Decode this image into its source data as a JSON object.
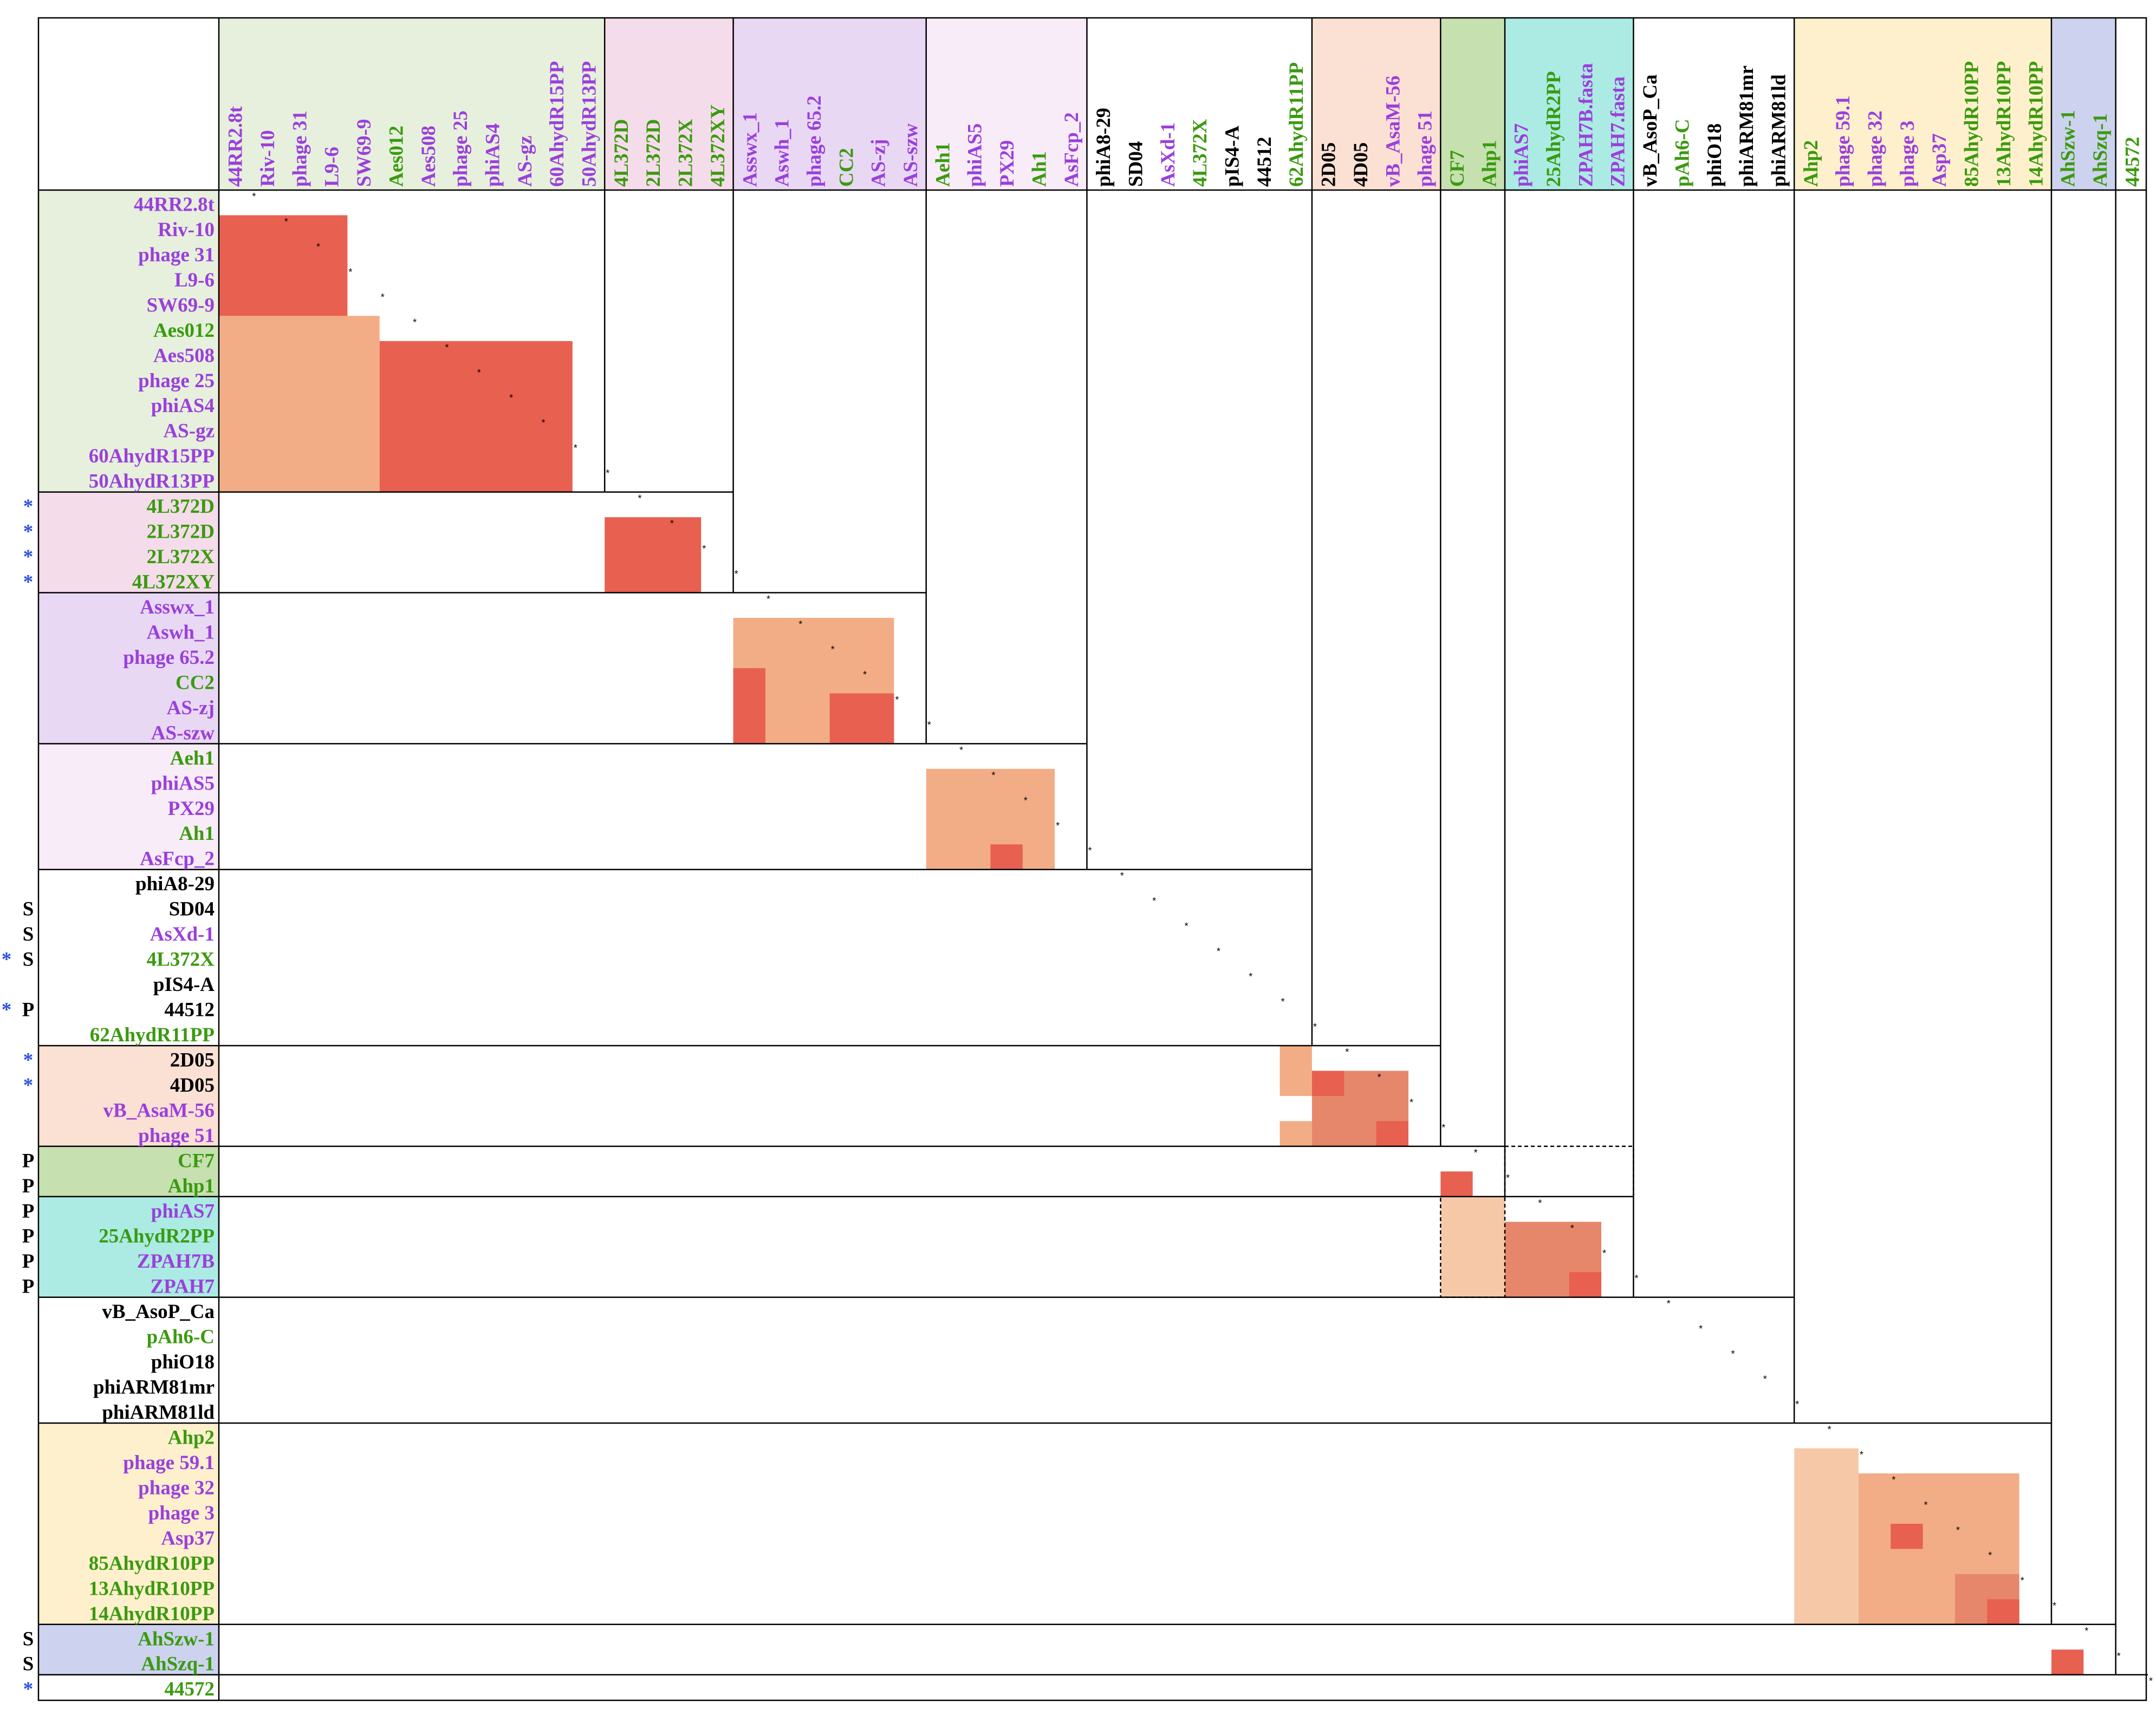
{
  "chart_data": {
    "type": "heatmap",
    "title": "",
    "diagonal_marker": "*",
    "colors": {
      "purple": "#9b3fdc",
      "green": "#3a9a0f",
      "black": "#000000",
      "blue_star": "#2d50e0",
      "very_high": "#e8604f",
      "high": "#e6876b",
      "medium": "#f2ad86",
      "low": "#f6c8a8",
      "grid": "#000000"
    },
    "labels": [
      {
        "name": "44RR2.8t",
        "color": "purple",
        "flag": ""
      },
      {
        "name": "Riv-10",
        "color": "purple",
        "flag": ""
      },
      {
        "name": "phage 31",
        "color": "purple",
        "flag": ""
      },
      {
        "name": "L9-6",
        "color": "purple",
        "flag": ""
      },
      {
        "name": "SW69-9",
        "color": "purple",
        "flag": ""
      },
      {
        "name": "Aes012",
        "color": "green",
        "flag": ""
      },
      {
        "name": "Aes508",
        "color": "purple",
        "flag": ""
      },
      {
        "name": "phage 25",
        "color": "purple",
        "flag": ""
      },
      {
        "name": "phiAS4",
        "color": "purple",
        "flag": ""
      },
      {
        "name": "AS-gz",
        "color": "purple",
        "flag": ""
      },
      {
        "name": "60AhydR15PP",
        "color": "purple",
        "flag": ""
      },
      {
        "name": "50AhydR13PP",
        "color": "purple",
        "flag": ""
      },
      {
        "name": "4L372D",
        "color": "green",
        "flag": "*"
      },
      {
        "name": "2L372D",
        "color": "green",
        "flag": "*"
      },
      {
        "name": "2L372X",
        "color": "green",
        "flag": "*"
      },
      {
        "name": "4L372XY",
        "color": "green",
        "flag": "*"
      },
      {
        "name": "Asswx_1",
        "color": "purple",
        "flag": ""
      },
      {
        "name": "Aswh_1",
        "color": "purple",
        "flag": ""
      },
      {
        "name": "phage 65.2",
        "color": "purple",
        "flag": ""
      },
      {
        "name": "CC2",
        "color": "green",
        "flag": ""
      },
      {
        "name": "AS-zj",
        "color": "purple",
        "flag": ""
      },
      {
        "name": "AS-szw",
        "color": "purple",
        "flag": ""
      },
      {
        "name": "Aeh1",
        "color": "green",
        "flag": ""
      },
      {
        "name": "phiAS5",
        "color": "purple",
        "flag": ""
      },
      {
        "name": "PX29",
        "color": "purple",
        "flag": ""
      },
      {
        "name": "Ah1",
        "color": "green",
        "flag": ""
      },
      {
        "name": "AsFcp_2",
        "color": "purple",
        "flag": ""
      },
      {
        "name": "phiA8-29",
        "color": "black",
        "flag": ""
      },
      {
        "name": "SD04",
        "color": "black",
        "flag": "S"
      },
      {
        "name": "AsXd-1",
        "color": "purple",
        "flag": "S"
      },
      {
        "name": "4L372X",
        "color": "green",
        "flag": "* S"
      },
      {
        "name": "pIS4-A",
        "color": "black",
        "flag": ""
      },
      {
        "name": "44512",
        "color": "black",
        "flag": "* P"
      },
      {
        "name": "62AhydR11PP",
        "color": "green",
        "flag": ""
      },
      {
        "name": "2D05",
        "color": "black",
        "flag": "*"
      },
      {
        "name": "4D05",
        "color": "black",
        "flag": "*"
      },
      {
        "name": "vB_AsaM-56",
        "color": "purple",
        "flag": ""
      },
      {
        "name": "phage 51",
        "color": "purple",
        "flag": ""
      },
      {
        "name": "CF7",
        "color": "green",
        "flag": "P"
      },
      {
        "name": "Ahp1",
        "color": "green",
        "flag": "P"
      },
      {
        "name": "phiAS7",
        "color": "purple",
        "flag": "P"
      },
      {
        "name": "25AhydR2PP",
        "color": "green",
        "flag": "P"
      },
      {
        "name": "ZPAH7B",
        "color": "purple",
        "flag": "P"
      },
      {
        "name": "ZPAH7",
        "color": "purple",
        "flag": "P"
      },
      {
        "name": "vB_AsoP_Ca",
        "color": "black",
        "flag": ""
      },
      {
        "name": "pAh6-C",
        "color": "green",
        "flag": ""
      },
      {
        "name": "phiO18",
        "color": "black",
        "flag": ""
      },
      {
        "name": "phiARM81mr",
        "color": "black",
        "flag": ""
      },
      {
        "name": "phiARM81ld",
        "color": "black",
        "flag": ""
      },
      {
        "name": "Ahp2",
        "color": "green",
        "flag": ""
      },
      {
        "name": "phage 59.1",
        "color": "purple",
        "flag": ""
      },
      {
        "name": "phage 32",
        "color": "purple",
        "flag": ""
      },
      {
        "name": "phage 3",
        "color": "purple",
        "flag": ""
      },
      {
        "name": "Asp37",
        "color": "purple",
        "flag": ""
      },
      {
        "name": "85AhydR10PP",
        "color": "green",
        "flag": ""
      },
      {
        "name": "13AhydR10PP",
        "color": "green",
        "flag": ""
      },
      {
        "name": "14AhydR10PP",
        "color": "green",
        "flag": ""
      },
      {
        "name": "AhSzw-1",
        "color": "green",
        "flag": "S"
      },
      {
        "name": "AhSzq-1",
        "color": "green",
        "flag": "S"
      },
      {
        "name": "44572",
        "color": "green",
        "flag": "*"
      }
    ],
    "column_label_overrides": {
      "42": "ZPAH7B.fasta",
      "43": "ZPAH7.fasta"
    },
    "groups": [
      {
        "start": 0,
        "end": 11,
        "color": "#e6f0dc"
      },
      {
        "start": 12,
        "end": 15,
        "color": "#f5dcea"
      },
      {
        "start": 16,
        "end": 21,
        "color": "#e8d8f3"
      },
      {
        "start": 22,
        "end": 26,
        "color": "#f7ecf7"
      },
      {
        "start": 27,
        "end": 33,
        "color": ""
      },
      {
        "start": 34,
        "end": 37,
        "color": "#fbe0d4"
      },
      {
        "start": 38,
        "end": 39,
        "color": "#c6e0b0"
      },
      {
        "start": 40,
        "end": 43,
        "color": "#abebe3"
      },
      {
        "start": 44,
        "end": 48,
        "color": ""
      },
      {
        "start": 49,
        "end": 56,
        "color": "#fef0cc"
      },
      {
        "start": 57,
        "end": 58,
        "color": "#cdd2ef"
      },
      {
        "start": 59,
        "end": 59,
        "color": ""
      }
    ],
    "similarity_blocks": [
      {
        "r0": 1,
        "r1": 4,
        "c0": 0,
        "c1": 3,
        "level": "very_high"
      },
      {
        "r0": 5,
        "r1": 11,
        "c0": 0,
        "c1": 4,
        "level": "medium"
      },
      {
        "r0": 6,
        "r1": 11,
        "c0": 5,
        "c1": 10,
        "level": "very_high"
      },
      {
        "r0": 13,
        "r1": 15,
        "c0": 12,
        "c1": 14,
        "level": "very_high"
      },
      {
        "r0": 17,
        "r1": 21,
        "c0": 16,
        "c1": 20,
        "level": "medium"
      },
      {
        "r0": 19,
        "r1": 21,
        "c0": 16,
        "c1": 16,
        "level": "very_high"
      },
      {
        "r0": 20,
        "r1": 21,
        "c0": 19,
        "c1": 20,
        "level": "very_high"
      },
      {
        "r0": 23,
        "r1": 26,
        "c0": 22,
        "c1": 25,
        "level": "medium"
      },
      {
        "r0": 26,
        "r1": 26,
        "c0": 24,
        "c1": 24,
        "level": "very_high"
      },
      {
        "r0": 34,
        "r1": 35,
        "c0": 33,
        "c1": 33,
        "level": "medium"
      },
      {
        "r0": 37,
        "r1": 37,
        "c0": 33,
        "c1": 33,
        "level": "medium"
      },
      {
        "r0": 35,
        "r1": 37,
        "c0": 34,
        "c1": 36,
        "level": "high"
      },
      {
        "r0": 35,
        "r1": 35,
        "c0": 34,
        "c1": 34,
        "level": "very_high"
      },
      {
        "r0": 37,
        "r1": 37,
        "c0": 36,
        "c1": 36,
        "level": "very_high"
      },
      {
        "r0": 39,
        "r1": 39,
        "c0": 38,
        "c1": 38,
        "level": "very_high"
      },
      {
        "r0": 40,
        "r1": 43,
        "c0": 38,
        "c1": 39,
        "level": "low"
      },
      {
        "r0": 41,
        "r1": 43,
        "c0": 40,
        "c1": 42,
        "level": "high"
      },
      {
        "r0": 43,
        "r1": 43,
        "c0": 42,
        "c1": 42,
        "level": "very_high"
      },
      {
        "r0": 50,
        "r1": 56,
        "c0": 49,
        "c1": 50,
        "level": "low"
      },
      {
        "r0": 51,
        "r1": 56,
        "c0": 51,
        "c1": 55,
        "level": "medium"
      },
      {
        "r0": 53,
        "r1": 53,
        "c0": 52,
        "c1": 52,
        "level": "very_high"
      },
      {
        "r0": 55,
        "r1": 56,
        "c0": 54,
        "c1": 55,
        "level": "high"
      },
      {
        "r0": 56,
        "r1": 56,
        "c0": 55,
        "c1": 55,
        "level": "very_high"
      },
      {
        "r0": 58,
        "r1": 58,
        "c0": 57,
        "c1": 57,
        "level": "very_high"
      }
    ],
    "boxed_cluster": {
      "rows": [
        38,
        39
      ],
      "cols": [
        40,
        43
      ],
      "style": "dashed"
    }
  }
}
